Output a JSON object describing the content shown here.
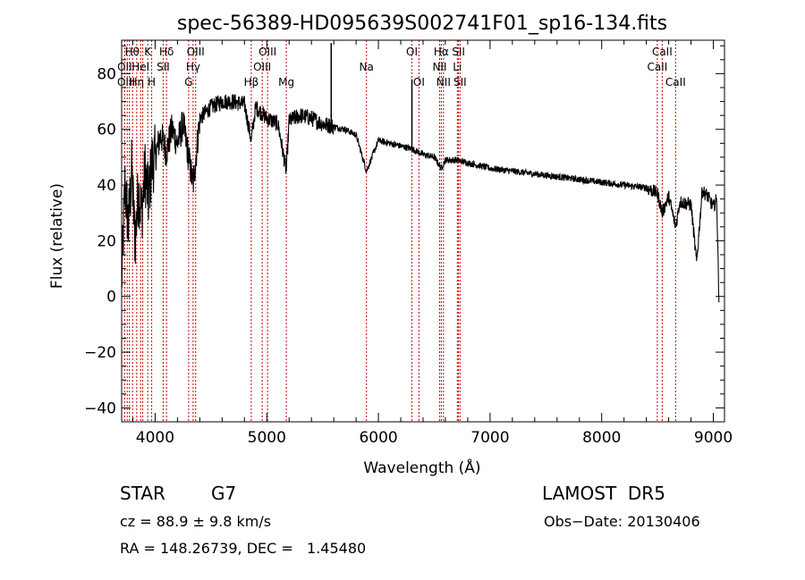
{
  "chart_data": {
    "type": "line",
    "title": "spec-56389-HD095639S002741F01_sp16-134.fits",
    "xlabel": "Wavelength (Å)",
    "ylabel": "Flux (relative)",
    "xlim": [
      3700,
      9100
    ],
    "ylim": [
      -45,
      92
    ],
    "x_ticks": [
      4000,
      5000,
      6000,
      7000,
      8000,
      9000
    ],
    "x_tick_labels": [
      "4000",
      "5000",
      "6000",
      "7000",
      "8000",
      "9000"
    ],
    "y_ticks": [
      -40,
      -20,
      0,
      20,
      40,
      60,
      80
    ],
    "y_tick_labels": [
      "−40",
      "−20",
      "0",
      "20",
      "40",
      "60",
      "80"
    ],
    "grid": false,
    "series": [
      {
        "color": "#000000",
        "x": [
          3700,
          3730,
          3760,
          3790,
          3820,
          3850,
          3880,
          3910,
          3940,
          3970,
          4000,
          4050,
          4100,
          4150,
          4200,
          4250,
          4300,
          4340,
          4400,
          4450,
          4500,
          4600,
          4700,
          4800,
          4861,
          4900,
          5000,
          5100,
          5175,
          5200,
          5300,
          5400,
          5500,
          5600,
          5700,
          5800,
          5893,
          6000,
          6100,
          6200,
          6300,
          6400,
          6500,
          6563,
          6600,
          6700,
          6800,
          7000,
          7200,
          7400,
          7600,
          7800,
          8000,
          8200,
          8400,
          8500,
          8542,
          8600,
          8662,
          8700,
          8800,
          8850,
          8900,
          8950,
          9000,
          9030,
          9050
        ],
        "y": [
          5,
          40,
          25,
          45,
          20,
          38,
          30,
          45,
          35,
          48,
          50,
          58,
          52,
          60,
          55,
          62,
          50,
          40,
          64,
          66,
          68,
          70,
          70,
          69,
          56,
          68,
          64,
          62,
          45,
          63,
          65,
          64,
          62,
          61,
          60,
          58,
          45,
          56,
          55,
          54,
          53,
          51,
          50,
          46,
          49,
          49,
          48,
          46,
          45,
          44,
          43,
          42,
          41,
          40,
          39,
          37,
          30,
          36,
          25,
          34,
          33,
          12,
          38,
          36,
          32,
          35,
          0
        ]
      }
    ],
    "spikes": [
      {
        "x": 5577,
        "y": 91
      },
      {
        "x": 6300,
        "y": 78
      }
    ],
    "line_markers": [
      {
        "x": 3727,
        "label": "OII"
      },
      {
        "x": 3750,
        "label": "OIII"
      },
      {
        "x": 3770,
        "label": "Hη"
      },
      {
        "x": 3798,
        "label": "Hθ"
      },
      {
        "x": 3835,
        "label": "Hη"
      },
      {
        "x": 3870,
        "label": "HeI"
      },
      {
        "x": 3889,
        "label": "Hζ"
      },
      {
        "x": 3934,
        "label": "K"
      },
      {
        "x": 3969,
        "label": "H"
      },
      {
        "x": 4072,
        "label": "SII"
      },
      {
        "x": 4102,
        "label": "Hδ"
      },
      {
        "x": 4300,
        "label": "G"
      },
      {
        "x": 4340,
        "label": "Hγ"
      },
      {
        "x": 4363,
        "label": "OIII"
      },
      {
        "x": 4861,
        "label": "Hβ"
      },
      {
        "x": 4959,
        "label": "OIII"
      },
      {
        "x": 5007,
        "label": "OIII"
      },
      {
        "x": 5175,
        "label": "Mg"
      },
      {
        "x": 5893,
        "label": "Na"
      },
      {
        "x": 6300,
        "label": "OI"
      },
      {
        "x": 6363,
        "label": "OI"
      },
      {
        "x": 6548,
        "label": "NII"
      },
      {
        "x": 6563,
        "label": "Hα"
      },
      {
        "x": 6583,
        "label": "NII"
      },
      {
        "x": 6707,
        "label": "Li"
      },
      {
        "x": 6717,
        "label": "SII"
      },
      {
        "x": 6731,
        "label": "SII"
      },
      {
        "x": 8498,
        "label": "CaII"
      },
      {
        "x": 8542,
        "label": "CaII"
      },
      {
        "x": 8662,
        "label": "CaII"
      }
    ],
    "marker_labels": [
      {
        "text": "Hθ",
        "x": 3795,
        "row": 0
      },
      {
        "text": "K",
        "x": 3934,
        "row": 0
      },
      {
        "text": "Hδ",
        "x": 4102,
        "row": 0
      },
      {
        "text": "OIII",
        "x": 4363,
        "row": 0
      },
      {
        "text": "OIII",
        "x": 5007,
        "row": 0
      },
      {
        "text": "OI",
        "x": 6300,
        "row": 0
      },
      {
        "text": "Hα",
        "x": 6563,
        "row": 0
      },
      {
        "text": "SII",
        "x": 6717,
        "row": 0
      },
      {
        "text": "CaII",
        "x": 8542,
        "row": 0
      },
      {
        "text": "OII",
        "x": 3727,
        "row": 1
      },
      {
        "text": "HeI",
        "x": 3870,
        "row": 1
      },
      {
        "text": "SII",
        "x": 4072,
        "row": 1
      },
      {
        "text": "Hγ",
        "x": 4340,
        "row": 1
      },
      {
        "text": "OIII",
        "x": 4959,
        "row": 1
      },
      {
        "text": "Na",
        "x": 5893,
        "row": 1
      },
      {
        "text": "NII",
        "x": 6548,
        "row": 1
      },
      {
        "text": "Li",
        "x": 6707,
        "row": 1
      },
      {
        "text": "CaII",
        "x": 8498,
        "row": 1
      },
      {
        "text": "OIII",
        "x": 3740,
        "row": 2
      },
      {
        "text": "Hη",
        "x": 3835,
        "row": 2
      },
      {
        "text": "H",
        "x": 3969,
        "row": 2
      },
      {
        "text": "G",
        "x": 4300,
        "row": 2
      },
      {
        "text": "Hβ",
        "x": 4861,
        "row": 2
      },
      {
        "text": "Mg",
        "x": 5175,
        "row": 2
      },
      {
        "text": "OI",
        "x": 6363,
        "row": 2
      },
      {
        "text": "NII",
        "x": 6583,
        "row": 2
      },
      {
        "text": "SII",
        "x": 6731,
        "row": 2
      },
      {
        "text": "CaII",
        "x": 8662,
        "row": 2
      }
    ],
    "marker_color": "#cc0000"
  },
  "info": {
    "object_class": "STAR",
    "subclass": "G7",
    "survey": "LAMOST  DR5",
    "redshift": "cz = 88.9 ± 9.8 km/s",
    "obs_date": "Obs−Date: 20130406",
    "coords": "RA = 148.26739, DEC =   1.45480"
  }
}
